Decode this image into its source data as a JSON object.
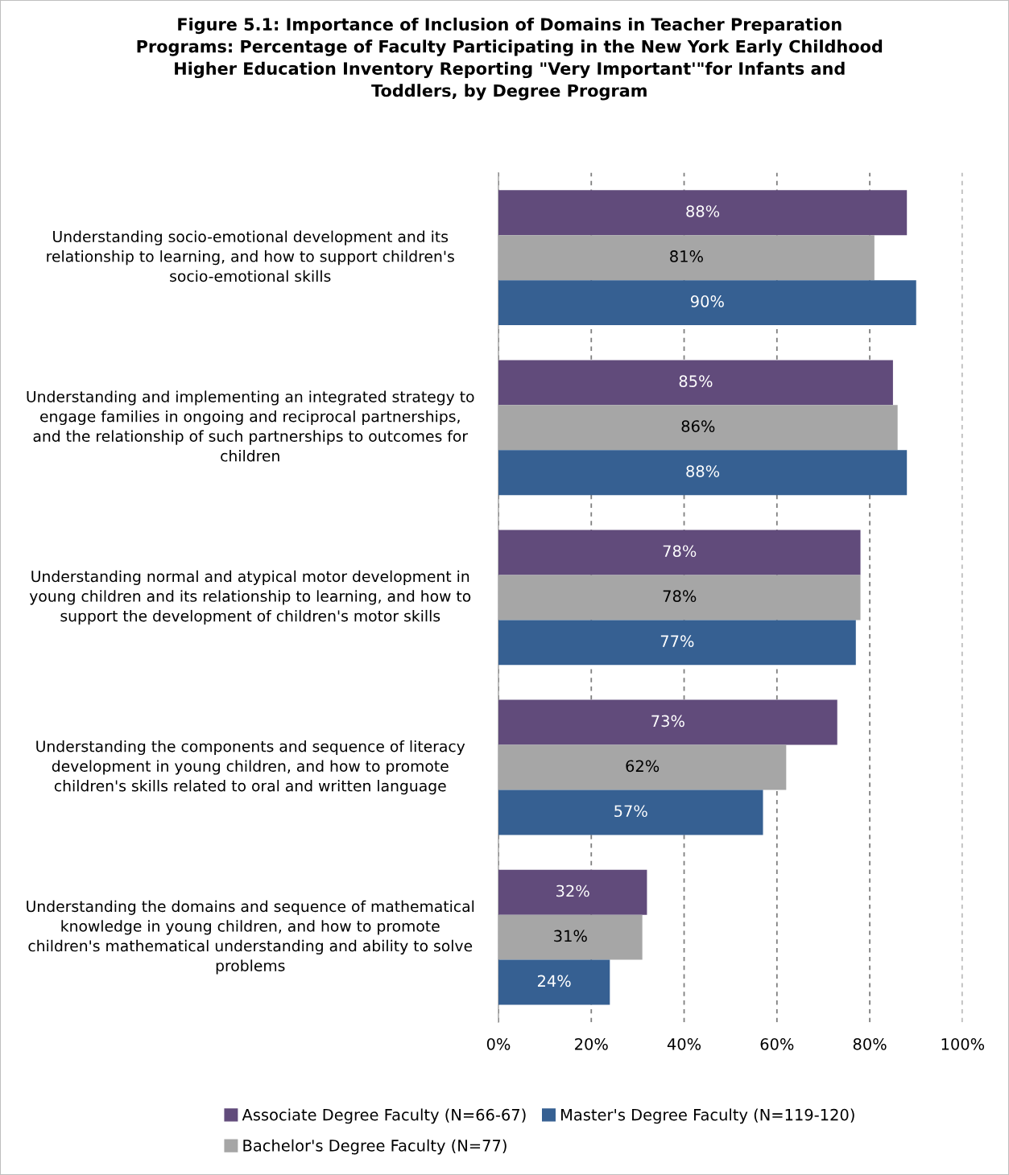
{
  "chart_data": {
    "type": "bar",
    "orientation": "horizontal",
    "title": "Figure 5.1: Importance of Inclusion of Domains in Teacher Preparation Programs: Percentage of Faculty Participating in the New York Early Childhood Higher Education Inventory Reporting \"Very Important'\"for Infants and Toddlers, by Degree Program",
    "categories": [
      "Understanding socio-emotional development and its relationship to learning, and how to support children's socio-emotional skills",
      "Understanding and implementing an integrated strategy to engage families in ongoing and reciprocal partnerships, and the relationship of such partnerships to outcomes for children",
      "Understanding normal and atypical motor development in young children and its relationship to learning, and how to support the development of children's motor skills",
      "Understanding the components and sequence of literacy development in young children, and how to promote children's skills related to oral and written language",
      "Understanding the domains and sequence of mathematical knowledge in young children, and how to promote children's mathematical understanding and ability to solve problems"
    ],
    "series": [
      {
        "name": "Associate Degree Faculty (N=66-67)",
        "color": "#614b7b",
        "values": [
          88,
          85,
          78,
          73,
          32
        ],
        "value_labels": [
          "88%",
          "85%",
          "78%",
          "73%",
          "32%"
        ]
      },
      {
        "name": "Bachelor's Degree Faculty (N=77)",
        "color": "#a6a6a6",
        "values": [
          81,
          86,
          78,
          62,
          31
        ],
        "value_labels": [
          "81%",
          "86%",
          "78%",
          "62%",
          "31%"
        ]
      },
      {
        "name": "Master's Degree Faculty (N=119-120)",
        "color": "#366092",
        "values": [
          90,
          88,
          77,
          57,
          24
        ],
        "value_labels": [
          "90%",
          "88%",
          "77%",
          "57%",
          "24%"
        ]
      }
    ],
    "xlim": [
      0,
      100
    ],
    "xticks": [
      {
        "value": 0,
        "label": "0%"
      },
      {
        "value": 20,
        "label": "20%"
      },
      {
        "value": 40,
        "label": "40%"
      },
      {
        "value": 60,
        "label": "60%"
      },
      {
        "value": 80,
        "label": "80%"
      },
      {
        "value": 100,
        "label": "100%"
      }
    ],
    "grid": "x",
    "line_style": "dashed",
    "legend": "bottom"
  }
}
